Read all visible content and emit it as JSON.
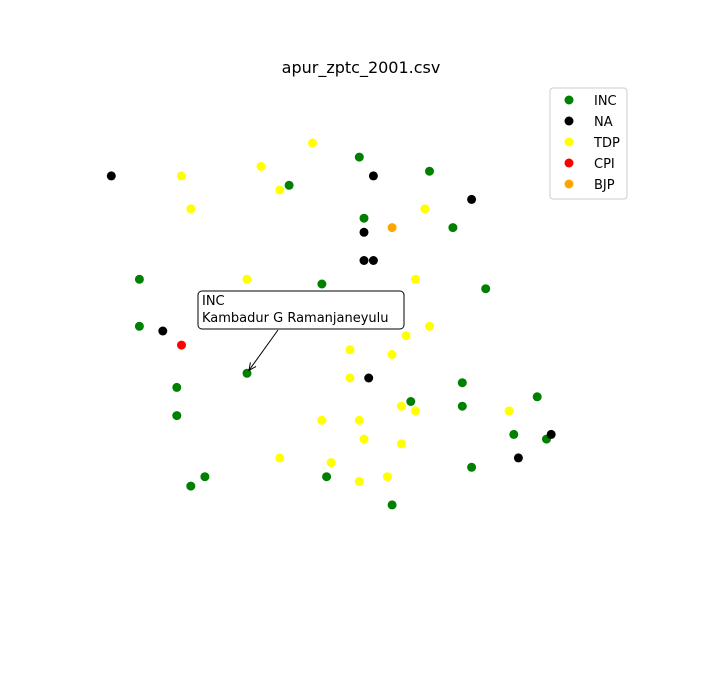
{
  "chart_data": {
    "type": "scatter",
    "title": "apur_zptc_2001.csv",
    "xlabel": "",
    "ylabel": "",
    "axes_visible": false,
    "grid": false,
    "legend_position": "top-right",
    "xlim": [
      0,
      100
    ],
    "ylim": [
      0,
      100
    ],
    "series": [
      {
        "name": "INC",
        "color": "#008000",
        "points": [
          [
            49,
            87
          ],
          [
            64,
            84
          ],
          [
            34,
            81
          ],
          [
            50,
            74
          ],
          [
            69,
            72
          ],
          [
            2,
            61
          ],
          [
            41,
            60
          ],
          [
            76,
            59
          ],
          [
            51,
            56
          ],
          [
            2,
            51
          ],
          [
            25,
            41
          ],
          [
            10,
            38
          ],
          [
            71,
            39
          ],
          [
            60,
            35
          ],
          [
            71,
            34
          ],
          [
            87,
            36
          ],
          [
            10,
            32
          ],
          [
            89,
            27
          ],
          [
            82,
            28
          ],
          [
            73,
            21
          ],
          [
            16,
            19
          ],
          [
            42,
            19
          ],
          [
            13,
            17
          ],
          [
            56,
            13
          ]
        ]
      },
      {
        "name": "NA",
        "color": "#000000",
        "points": [
          [
            -4,
            83
          ],
          [
            52,
            83
          ],
          [
            73,
            78
          ],
          [
            50,
            71
          ],
          [
            50,
            65
          ],
          [
            52,
            65
          ],
          [
            7,
            50
          ],
          [
            51,
            40
          ],
          [
            90,
            28
          ],
          [
            83,
            23
          ]
        ]
      },
      {
        "name": "TDP",
        "color": "#ffff00",
        "points": [
          [
            39,
            90
          ],
          [
            28,
            85
          ],
          [
            11,
            83
          ],
          [
            32,
            80
          ],
          [
            13,
            76
          ],
          [
            63,
            76
          ],
          [
            25,
            61
          ],
          [
            61,
            61
          ],
          [
            64,
            51
          ],
          [
            59,
            49
          ],
          [
            47,
            46
          ],
          [
            56,
            45
          ],
          [
            47,
            40
          ],
          [
            58,
            34
          ],
          [
            61,
            33
          ],
          [
            81,
            33
          ],
          [
            41,
            31
          ],
          [
            49,
            31
          ],
          [
            50,
            27
          ],
          [
            58,
            26
          ],
          [
            32,
            23
          ],
          [
            43,
            22
          ],
          [
            55,
            19
          ],
          [
            49,
            18
          ]
        ]
      },
      {
        "name": "CPI",
        "color": "#ff0000",
        "points": [
          [
            11,
            47
          ]
        ]
      },
      {
        "name": "BJP",
        "color": "#ffa500",
        "points": [
          [
            56,
            72
          ]
        ]
      }
    ],
    "annotation": {
      "lines": [
        "INC",
        "Kambadur G Ramanjaneyulu"
      ],
      "point": [
        25,
        41
      ]
    }
  }
}
